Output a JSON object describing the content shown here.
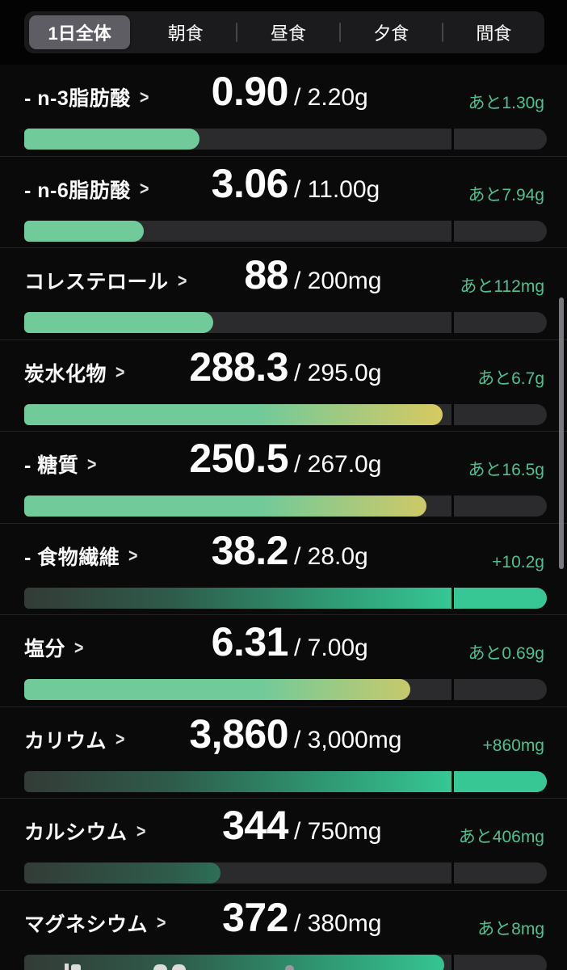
{
  "tabs": {
    "items": [
      {
        "label": "1日全体",
        "selected": true
      },
      {
        "label": "朝食",
        "selected": false
      },
      {
        "label": "昼食",
        "selected": false
      },
      {
        "label": "夕食",
        "selected": false
      },
      {
        "label": "間食",
        "selected": false
      }
    ]
  },
  "icons": {
    "chevron_right": ">"
  },
  "goal_marker_pct": 82,
  "colors": {
    "mint": "#71ca9a",
    "warn_yellow": "#ddc95c",
    "goal_teal": "#36c795",
    "goal_dark": "#333b36",
    "remaining_green": "#4cc18d",
    "track": "#2b2b2d"
  },
  "rows": [
    {
      "label": "- n-3脂肪酸",
      "current": "0.90",
      "target": "/ 2.20g",
      "remaining": "あと1.30g",
      "fill_pct": 33.5,
      "bar_style": "mint"
    },
    {
      "label": "- n-6脂肪酸",
      "current": "3.06",
      "target": "/ 11.00g",
      "remaining": "あと7.94g",
      "fill_pct": 22.8,
      "bar_style": "mint"
    },
    {
      "label": "コレステロール",
      "current": "88",
      "target": "/ 200mg",
      "remaining": "あと112mg",
      "fill_pct": 36.1,
      "bar_style": "mint"
    },
    {
      "label": "炭水化物",
      "current": "288.3",
      "target": "/ 295.0g",
      "remaining": "あと6.7g",
      "fill_pct": 80.1,
      "bar_style": "mint-yellow"
    },
    {
      "label": "- 糖質",
      "current": "250.5",
      "target": "/ 267.0g",
      "remaining": "あと16.5g",
      "fill_pct": 76.9,
      "bar_style": "mint-yellow"
    },
    {
      "label": "- 食物繊維",
      "current": "38.2",
      "target": "/ 28.0g",
      "remaining": "+10.2g",
      "fill_pct": 100,
      "bar_style": "dark-green"
    },
    {
      "label": "塩分",
      "current": "6.31",
      "target": "/ 7.00g",
      "remaining": "あと0.69g",
      "fill_pct": 73.9,
      "bar_style": "mint-yellow"
    },
    {
      "label": "カリウム",
      "current": "3,860",
      "target": "/ 3,000mg",
      "remaining": "+860mg",
      "fill_pct": 100,
      "bar_style": "dark-green"
    },
    {
      "label": "カルシウム",
      "current": "344",
      "target": "/ 750mg",
      "remaining": "あと406mg",
      "fill_pct": 37.6,
      "bar_style": "dark-green"
    },
    {
      "label": "マグネシウム",
      "current": "372",
      "target": "/ 380mg",
      "remaining": "あと8mg",
      "fill_pct": 80.3,
      "bar_style": "dark-green"
    }
  ]
}
